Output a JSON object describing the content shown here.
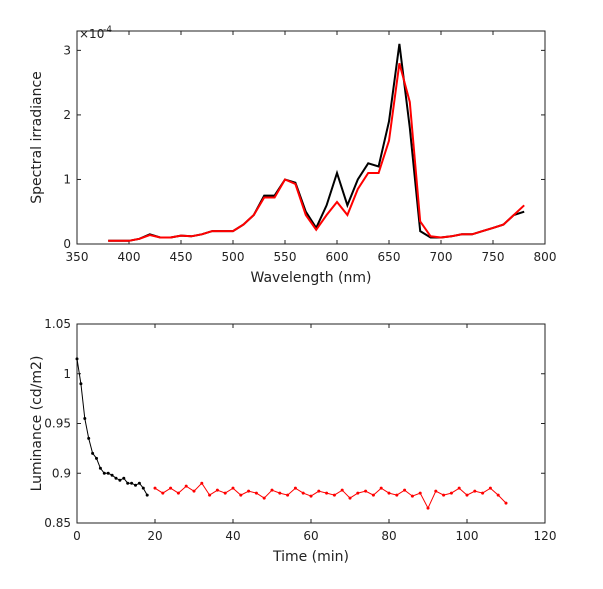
{
  "chart_data": [
    {
      "type": "line",
      "xlabel": "Wavelength (nm)",
      "ylabel": "Spectral irradiance",
      "y_scale_label": "×10",
      "y_scale_power": "-4",
      "xlim": [
        350,
        800
      ],
      "xticks": [
        350,
        400,
        450,
        500,
        550,
        600,
        650,
        700,
        750,
        800
      ],
      "ylim": [
        0,
        3.3
      ],
      "yticks": [
        0,
        1,
        2,
        3
      ],
      "markers": false,
      "x": [
        380,
        390,
        400,
        410,
        420,
        430,
        440,
        450,
        460,
        470,
        480,
        490,
        500,
        510,
        520,
        530,
        540,
        550,
        560,
        570,
        580,
        590,
        600,
        610,
        620,
        630,
        640,
        650,
        660,
        670,
        680,
        690,
        700,
        710,
        720,
        730,
        740,
        750,
        760,
        770,
        780
      ],
      "series": [
        {
          "color": "#000000",
          "values": [
            0.05,
            0.05,
            0.05,
            0.08,
            0.15,
            0.1,
            0.1,
            0.13,
            0.12,
            0.15,
            0.2,
            0.2,
            0.2,
            0.3,
            0.45,
            0.75,
            0.75,
            1.0,
            0.95,
            0.5,
            0.25,
            0.6,
            1.1,
            0.6,
            1.0,
            1.25,
            1.2,
            1.9,
            3.1,
            1.8,
            0.2,
            0.1,
            0.1,
            0.12,
            0.15,
            0.15,
            0.2,
            0.25,
            0.3,
            0.45,
            0.5
          ]
        },
        {
          "color": "#ff0000",
          "values": [
            0.05,
            0.05,
            0.05,
            0.08,
            0.14,
            0.1,
            0.1,
            0.13,
            0.12,
            0.15,
            0.2,
            0.2,
            0.2,
            0.3,
            0.45,
            0.72,
            0.72,
            1.0,
            0.93,
            0.45,
            0.22,
            0.45,
            0.65,
            0.45,
            0.85,
            1.1,
            1.1,
            1.6,
            2.8,
            2.2,
            0.35,
            0.12,
            0.1,
            0.12,
            0.15,
            0.15,
            0.2,
            0.25,
            0.3,
            0.45,
            0.6
          ]
        }
      ]
    },
    {
      "type": "line",
      "xlabel": "Time (min)",
      "ylabel": "Luminance (cd/m2)",
      "xlim": [
        0,
        120
      ],
      "xticks": [
        0,
        20,
        40,
        60,
        80,
        100,
        120
      ],
      "ylim": [
        0.85,
        1.05
      ],
      "yticks": [
        0.85,
        0.9,
        0.95,
        1,
        1.05
      ],
      "markers": true,
      "series": [
        {
          "color": "#000000",
          "x": [
            0,
            1,
            2,
            3,
            4,
            5,
            6,
            7,
            8,
            9,
            10,
            11,
            12,
            13,
            14,
            15,
            16,
            17,
            18
          ],
          "values": [
            1.015,
            0.99,
            0.955,
            0.935,
            0.92,
            0.915,
            0.905,
            0.9,
            0.9,
            0.898,
            0.895,
            0.893,
            0.895,
            0.89,
            0.89,
            0.888,
            0.89,
            0.885,
            0.878
          ]
        },
        {
          "color": "#ff0000",
          "x": [
            20,
            22,
            24,
            26,
            28,
            30,
            32,
            34,
            36,
            38,
            40,
            42,
            44,
            46,
            48,
            50,
            52,
            54,
            56,
            58,
            60,
            62,
            64,
            66,
            68,
            70,
            72,
            74,
            76,
            78,
            80,
            82,
            84,
            86,
            88,
            90,
            92,
            94,
            96,
            98,
            100,
            102,
            104,
            106,
            108,
            110
          ],
          "values": [
            0.885,
            0.88,
            0.885,
            0.88,
            0.887,
            0.882,
            0.89,
            0.878,
            0.883,
            0.88,
            0.885,
            0.878,
            0.882,
            0.88,
            0.875,
            0.883,
            0.88,
            0.878,
            0.885,
            0.88,
            0.877,
            0.882,
            0.88,
            0.878,
            0.883,
            0.875,
            0.88,
            0.882,
            0.878,
            0.885,
            0.88,
            0.878,
            0.883,
            0.877,
            0.88,
            0.865,
            0.882,
            0.878,
            0.88,
            0.885,
            0.878,
            0.882,
            0.88,
            0.885,
            0.878,
            0.87
          ]
        }
      ]
    }
  ]
}
